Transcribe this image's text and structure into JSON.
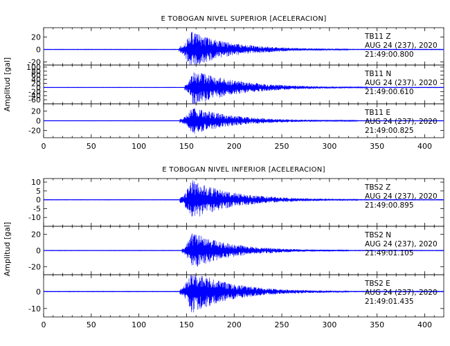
{
  "chart_data": [
    {
      "type": "line",
      "title": "E TOBOGAN NIVEL SUPERIOR [ACELERACION]",
      "ylabel": "Amplitud [gal]",
      "xlabel": "",
      "xlim": [
        0,
        420
      ],
      "xticks": [
        0,
        50,
        100,
        150,
        200,
        250,
        300,
        350,
        400
      ],
      "line_color": "#0000ff",
      "grid": false,
      "traces": [
        {
          "station": "TB11",
          "component": "Z",
          "date": "AUG 24 (237), 2020",
          "time": "21:49:00.800",
          "ylim": [
            -25,
            35
          ],
          "yticks": [
            -20,
            0,
            20
          ],
          "onset": 142,
          "peak_time": 154,
          "peak_amplitude": 32,
          "coda_end": 320
        },
        {
          "station": "TB11",
          "component": "N",
          "date": "AUG 24 (237), 2020",
          "time": "21:49:00.610",
          "ylim": [
            -80,
            110
          ],
          "yticks": [
            -60,
            -40,
            -20,
            0,
            20,
            40,
            60,
            80,
            100
          ],
          "onset": 148,
          "peak_time": 157,
          "peak_amplitude": 95,
          "coda_end": 340
        },
        {
          "station": "TB11",
          "component": "E",
          "date": "AUG 24 (237), 2020",
          "time": "21:49:00.825",
          "ylim": [
            -35,
            35
          ],
          "yticks": [
            -20,
            0,
            20
          ],
          "onset": 143,
          "peak_time": 156,
          "peak_amplitude": 30,
          "coda_end": 330
        }
      ]
    },
    {
      "type": "line",
      "title": "E TOBOGAN NIVEL INFERIOR [ACELERACION]",
      "ylabel": "Amplitud [gal]",
      "xlabel": "",
      "xlim": [
        0,
        420
      ],
      "xticks": [
        0,
        50,
        100,
        150,
        200,
        250,
        300,
        350,
        400
      ],
      "line_color": "#0000ff",
      "grid": false,
      "traces": [
        {
          "station": "TBS2",
          "component": "Z",
          "date": "AUG 24 (237), 2020",
          "time": "21:49:00.895",
          "ylim": [
            -15,
            12
          ],
          "yticks": [
            -10,
            -5,
            0,
            5,
            10
          ],
          "onset": 143,
          "peak_time": 155,
          "peak_amplitude": 12,
          "coda_end": 330
        },
        {
          "station": "TBS2",
          "component": "N",
          "date": "AUG 24 (237), 2020",
          "time": "21:49:01.105",
          "ylim": [
            -30,
            30
          ],
          "yticks": [
            -20,
            0,
            20
          ],
          "onset": 145,
          "peak_time": 156,
          "peak_amplitude": 24,
          "coda_end": 320
        },
        {
          "station": "TBS2",
          "component": "E",
          "date": "AUG 24 (237), 2020",
          "time": "21:49:01.435",
          "ylim": [
            -15,
            10
          ],
          "yticks": [
            -10,
            0
          ],
          "onset": 143,
          "peak_time": 155,
          "peak_amplitude": 14,
          "coda_end": 320
        }
      ]
    }
  ]
}
